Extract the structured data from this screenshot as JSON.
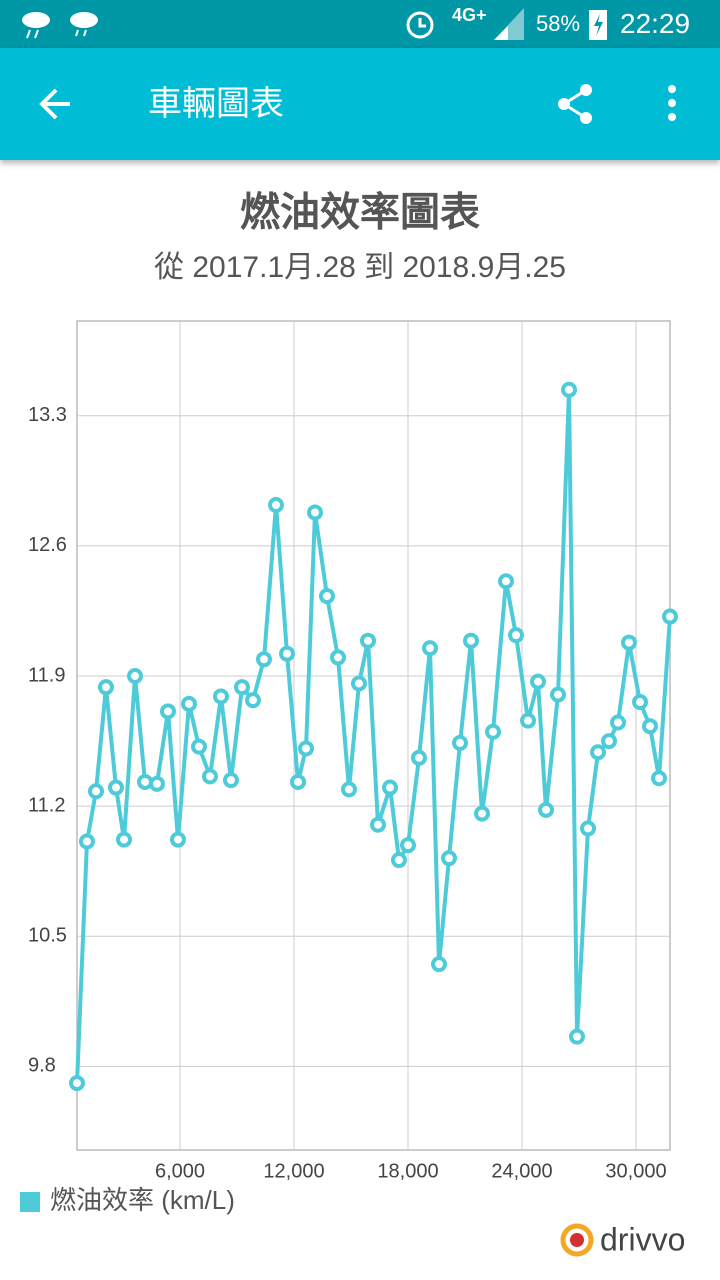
{
  "status_bar": {
    "network": "4G+",
    "battery": "58%",
    "time": "22:29"
  },
  "app_bar": {
    "title": "車輛圖表"
  },
  "chart_data": {
    "type": "line",
    "title": "燃油效率圖表",
    "subtitle": "從 2017.1月.28 到 2018.9月.25",
    "x": [
      579,
      1105,
      1579,
      2105,
      2632,
      3053,
      3632,
      4158,
      4789,
      5368,
      5895,
      6474,
      7000,
      7579,
      8158,
      8684,
      9263,
      9842,
      10421,
      11053,
      11632,
      12211,
      12632,
      13105,
      13737,
      14316,
      14895,
      15421,
      15895,
      16421,
      17053,
      17526,
      18000,
      18579,
      19158,
      19632,
      20158,
      20737,
      21316,
      21895,
      22474,
      23158,
      23684,
      24316,
      24842,
      25263,
      25895,
      26474,
      26895,
      27474,
      28000,
      28579,
      29053,
      29632,
      30211,
      30737,
      31211,
      31789
    ],
    "series": [
      {
        "name": "燃油效率 (km/L)",
        "color": "#4ecbd8",
        "values": [
          9.71,
          11.01,
          11.28,
          11.84,
          11.3,
          11.02,
          11.9,
          11.33,
          11.32,
          11.71,
          11.02,
          11.75,
          11.52,
          11.36,
          11.79,
          11.34,
          11.84,
          11.77,
          11.99,
          12.82,
          12.02,
          11.33,
          11.51,
          12.78,
          12.33,
          12.0,
          11.29,
          11.86,
          12.09,
          11.1,
          11.3,
          10.91,
          10.99,
          11.46,
          12.05,
          10.35,
          10.92,
          11.54,
          12.09,
          11.16,
          11.6,
          12.41,
          12.12,
          11.66,
          11.87,
          11.18,
          11.8,
          13.44,
          9.96,
          11.08,
          11.49,
          11.55,
          11.65,
          12.08,
          11.76,
          11.63,
          11.35,
          12.22
        ]
      }
    ],
    "xlim": [
      579,
      31789
    ],
    "ylim": [
      9.35,
      13.81
    ],
    "xticks": [
      {
        "value": 6000,
        "label": "6,000"
      },
      {
        "value": 12000,
        "label": "12,000"
      },
      {
        "value": 18000,
        "label": "18,000"
      },
      {
        "value": 24000,
        "label": "24,000"
      },
      {
        "value": 30000,
        "label": "30,000"
      }
    ],
    "yticks": [
      9.8,
      10.5,
      11.2,
      11.9,
      12.6,
      13.3
    ],
    "grid": true,
    "legend": "bottom-left"
  },
  "footer": {
    "logo": "drivvo"
  }
}
